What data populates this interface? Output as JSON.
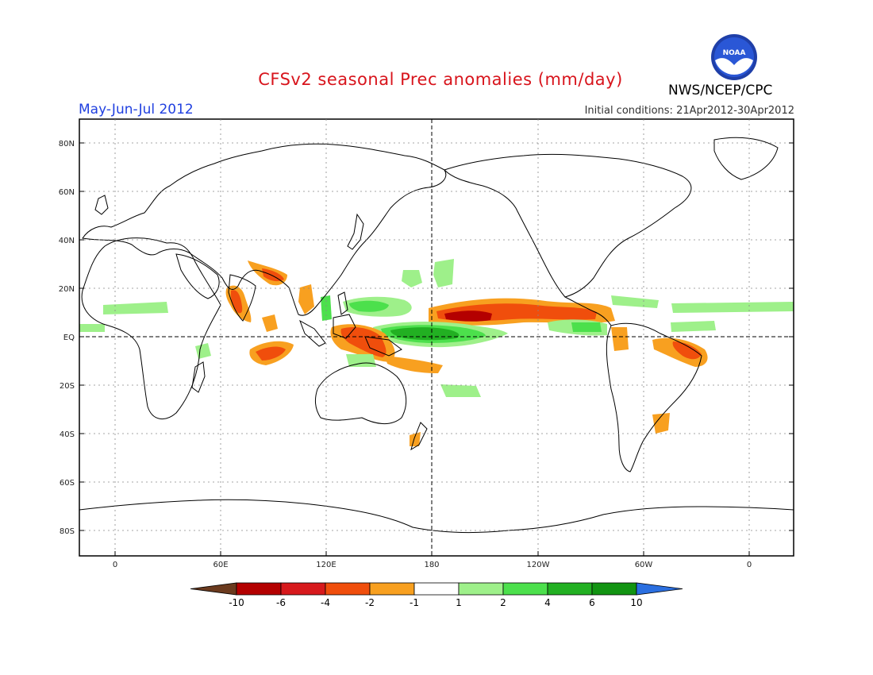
{
  "header": {
    "title": "CFSv2 seasonal Prec anomalies (mm/day)",
    "season": "May-Jun-Jul 2012",
    "initial_conditions": "Initial conditions: 21Apr2012-30Apr2012",
    "agency": "NWS/NCEP/CPC",
    "logo_text": "NOAA"
  },
  "map": {
    "lat_labels": [
      "80N",
      "60N",
      "40N",
      "20N",
      "EQ",
      "20S",
      "40S",
      "60S",
      "80S"
    ],
    "lon_labels": [
      "0",
      "60E",
      "120E",
      "180",
      "120W",
      "60W",
      "0"
    ]
  },
  "legend": {
    "levels": [
      "-10",
      "-6",
      "-4",
      "-2",
      "-1",
      "1",
      "2",
      "4",
      "6",
      "10"
    ],
    "colors": [
      "#6b3a1e",
      "#b40000",
      "#d7191c",
      "#f04e0c",
      "#f8a020",
      "#ffffff",
      "#9ef08a",
      "#4ce04c",
      "#22b022",
      "#129412",
      "#2b6fe0"
    ]
  }
}
